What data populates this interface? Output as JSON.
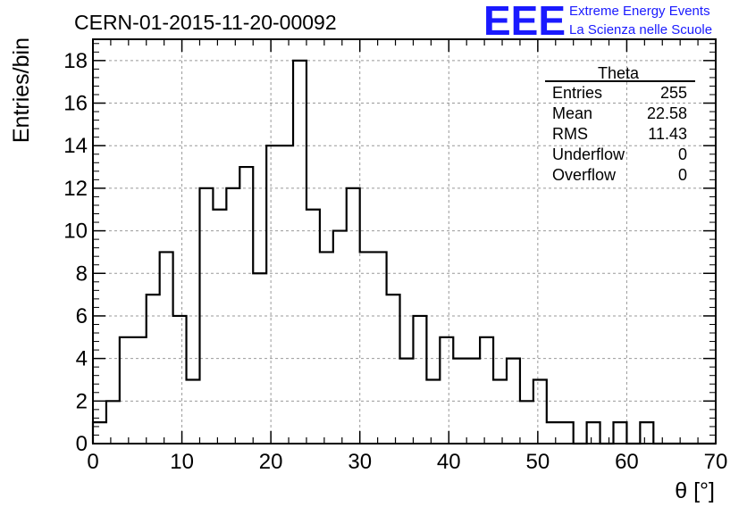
{
  "header": {
    "run_title": "CERN-01-2015-11-20-00092",
    "logo_text": "EEE",
    "logo_line1": "Extreme Energy Events",
    "logo_line2": "La Scienza nelle Scuole",
    "logo_color": "#1a1aff"
  },
  "stats_box": {
    "title": "Theta",
    "rows": [
      {
        "label": "Entries",
        "value": "255"
      },
      {
        "label": "Mean",
        "value": "22.58"
      },
      {
        "label": "RMS",
        "value": "11.43"
      },
      {
        "label": "Underflow",
        "value": "0"
      },
      {
        "label": "Overflow",
        "value": "0"
      }
    ]
  },
  "chart_data": {
    "type": "bar",
    "histogram": true,
    "xlabel": "θ [°]",
    "ylabel": "Entries/bin",
    "xlim": [
      0,
      70
    ],
    "ylim": [
      0,
      19
    ],
    "bin_width": 1.5,
    "x_ticks": [
      0,
      10,
      20,
      30,
      40,
      50,
      60,
      70
    ],
    "y_ticks": [
      0,
      2,
      4,
      6,
      8,
      10,
      12,
      14,
      16,
      18
    ],
    "grid": true,
    "values": [
      1,
      2,
      5,
      5,
      7,
      9,
      6,
      3,
      12,
      11,
      12,
      13,
      8,
      14,
      14,
      18,
      11,
      9,
      10,
      12,
      9,
      9,
      7,
      4,
      6,
      3,
      5,
      4,
      4,
      5,
      3,
      4,
      2,
      3,
      1,
      1,
      0,
      1,
      0,
      1,
      0,
      1,
      0,
      0,
      0,
      0,
      0
    ]
  }
}
